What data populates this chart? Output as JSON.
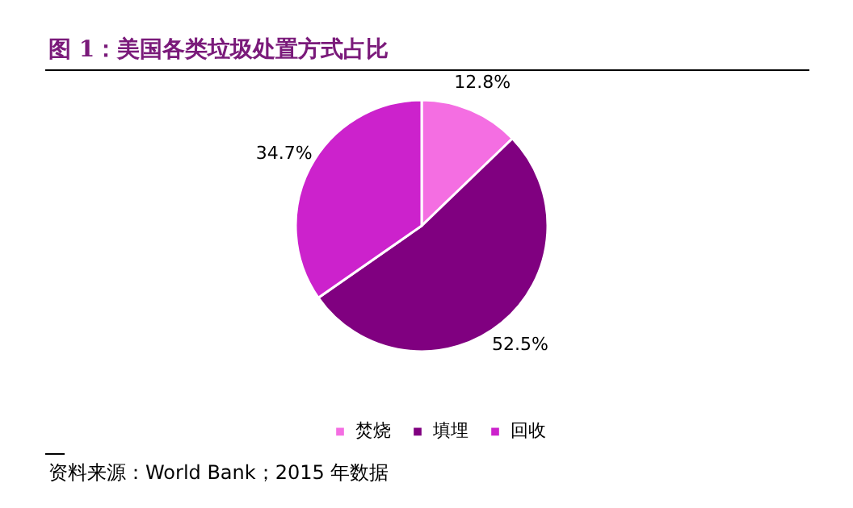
{
  "chart_data": {
    "type": "pie",
    "title": "图 1：美国各类垃圾处置方式占比",
    "categories": [
      "焚烧",
      "填埋",
      "回收"
    ],
    "values": [
      12.8,
      52.5,
      34.7
    ],
    "colors": [
      "#f46ee2",
      "#800080",
      "#cc22cc"
    ],
    "value_labels": [
      "12.8%",
      "52.5%",
      "34.7%"
    ],
    "legend": "bottom",
    "annotations": [
      "资料来源：World Bank；2015 年数据"
    ]
  }
}
